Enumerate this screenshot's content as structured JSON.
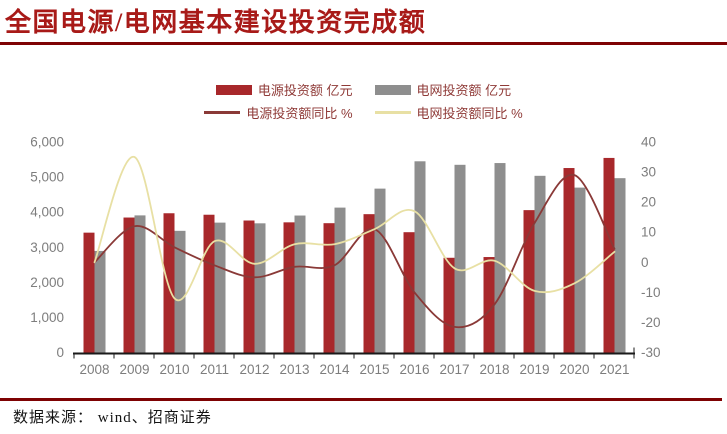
{
  "title": "全国电源/电网基本建设投资完成额",
  "source": "数据来源： wind、招商证券",
  "colors": {
    "title_red": "#A81A18",
    "rule_red": "#7E0203",
    "bar_power": "#A8282B",
    "bar_grid": "#8E8E8E",
    "line_power_yoy": "#8A3937",
    "line_grid_yoy": "#E8E0A4",
    "axis_text": "#7D7D7D",
    "axis_line": "#1A1A1A",
    "legend_text": "#8F3A37"
  },
  "legend": {
    "items": [
      {
        "label": "电源投资额 亿元",
        "swatch": "bar",
        "color": "#A8282B"
      },
      {
        "label": "电网投资额 亿元",
        "swatch": "bar",
        "color": "#8E8E8E"
      },
      {
        "label": "电源投资额同比 %",
        "swatch": "line",
        "color": "#8A3937"
      },
      {
        "label": "电网投资额同比 %",
        "swatch": "line",
        "color": "#E8E0A4"
      }
    ]
  },
  "chart_data": {
    "type": "bar",
    "subtype": "combo-bar-line",
    "categories": [
      "2008",
      "2009",
      "2010",
      "2011",
      "2012",
      "2013",
      "2014",
      "2015",
      "2016",
      "2017",
      "2018",
      "2019",
      "2020",
      "2021"
    ],
    "series": [
      {
        "name": "电源投资额",
        "unit": "亿元",
        "type": "bar",
        "axis": "left",
        "color": "#A8282B",
        "values": [
          3416,
          3847,
          3969,
          3927,
          3762,
          3710,
          3686,
          3943,
          3429,
          2700,
          2721,
          4058,
          5258,
          5546
        ]
      },
      {
        "name": "电网投资额",
        "unit": "亿元",
        "type": "bar",
        "axis": "left",
        "color": "#8E8E8E",
        "values": [
          2895,
          3908,
          3468,
          3702,
          3682,
          3904,
          4130,
          4671,
          5450,
          5350,
          5400,
          5036,
          4700,
          4969
        ]
      },
      {
        "name": "电源投资额同比",
        "unit": "%",
        "type": "line",
        "axis": "right",
        "color": "#8A3937",
        "values": [
          0,
          12,
          5,
          -1,
          -5,
          -1.5,
          -1,
          11,
          -10,
          -21.5,
          -14,
          13,
          29,
          4.5
        ]
      },
      {
        "name": "电网投资额同比",
        "unit": "%",
        "type": "line",
        "axis": "right",
        "color": "#E8E0A4",
        "values": [
          0,
          35,
          -12,
          7,
          -0.5,
          6,
          6,
          11,
          17,
          -2,
          0.5,
          -9.5,
          -7,
          3.5
        ]
      }
    ],
    "left_axis": {
      "min": 0,
      "max": 6000,
      "tick_values": [
        0,
        1000,
        2000,
        3000,
        4000,
        5000,
        6000
      ],
      "tick_labels": [
        "0",
        "1,000",
        "2,000",
        "3,000",
        "4,000",
        "5,000",
        "6,000"
      ]
    },
    "right_axis": {
      "min": -30,
      "max": 40,
      "tick_values": [
        -30,
        -20,
        -10,
        0,
        10,
        20,
        30,
        40
      ],
      "tick_labels": [
        "-30",
        "-20",
        "-10",
        "0",
        "10",
        "20",
        "30",
        "40"
      ]
    },
    "grid": false,
    "legend_position": "top-center"
  }
}
